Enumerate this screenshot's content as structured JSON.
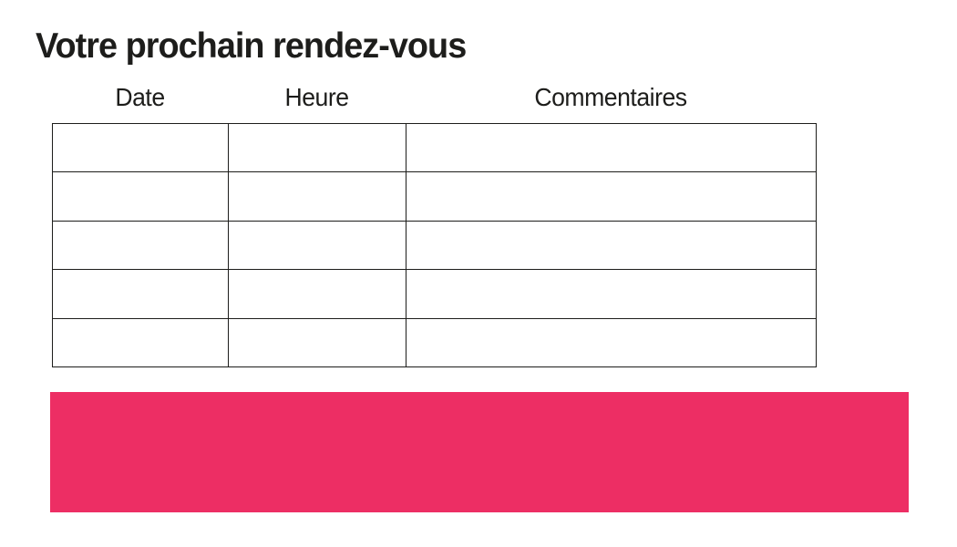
{
  "page": {
    "title": "Votre prochain rendez-vous"
  },
  "table": {
    "columns": [
      {
        "label": "Date"
      },
      {
        "label": "Heure"
      },
      {
        "label": "Commentaires"
      }
    ],
    "rows": [
      {
        "date": "",
        "heure": "",
        "commentaires": ""
      },
      {
        "date": "",
        "heure": "",
        "commentaires": ""
      },
      {
        "date": "",
        "heure": "",
        "commentaires": ""
      },
      {
        "date": "",
        "heure": "",
        "commentaires": ""
      },
      {
        "date": "",
        "heure": "",
        "commentaires": ""
      }
    ]
  },
  "banner": {
    "text": ""
  },
  "colors": {
    "accent_pink": "#ED2E64",
    "border": "#1d1d1b",
    "text": "#1d1d1b",
    "background": "#ffffff"
  }
}
